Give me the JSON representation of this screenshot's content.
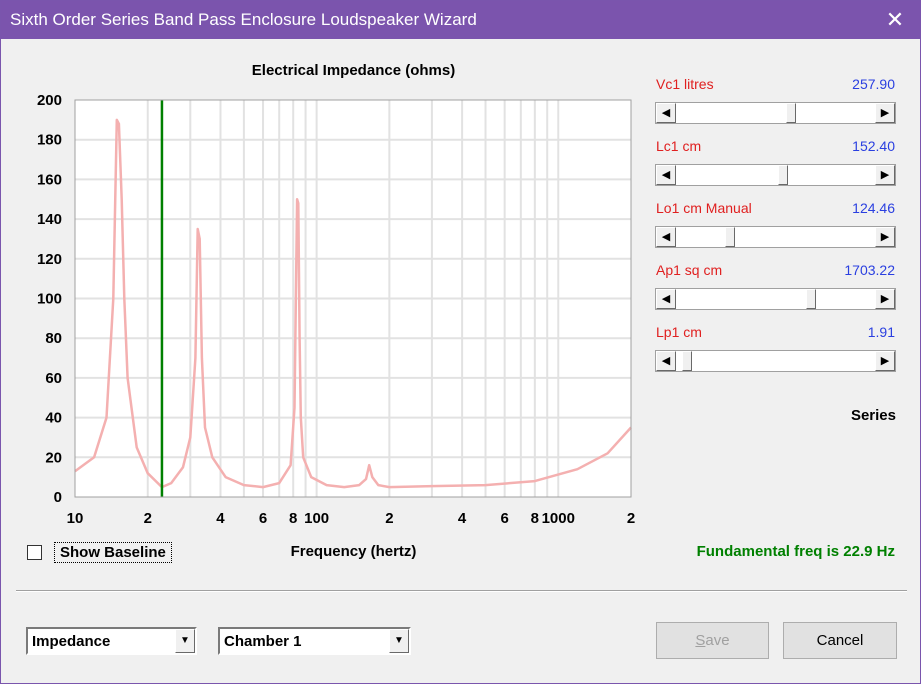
{
  "window": {
    "title": "Sixth Order Series Band Pass Enclosure Loudspeaker Wizard",
    "close_glyph": "✕"
  },
  "chart_data": {
    "type": "line",
    "title": "Electrical Impedance (ohms)",
    "xlabel": "Frequency (hertz)",
    "ylabel": "",
    "x_scale": "log",
    "xlim": [
      10,
      2000
    ],
    "ylim": [
      0,
      200
    ],
    "y_ticks": [
      0,
      20,
      40,
      60,
      80,
      100,
      120,
      140,
      160,
      180,
      200
    ],
    "x_ticks": [
      {
        "value": 10,
        "label": "10"
      },
      {
        "value": 20,
        "label": "2"
      },
      {
        "value": 40,
        "label": "4"
      },
      {
        "value": 60,
        "label": "6"
      },
      {
        "value": 80,
        "label": "8"
      },
      {
        "value": 100,
        "label": "100"
      },
      {
        "value": 200,
        "label": "2"
      },
      {
        "value": 400,
        "label": "4"
      },
      {
        "value": 600,
        "label": "6"
      },
      {
        "value": 800,
        "label": "8"
      },
      {
        "value": 1000,
        "label": "1000"
      },
      {
        "value": 2000,
        "label": "2"
      }
    ],
    "grid": true,
    "marker_frequency": 22.9,
    "series": [
      {
        "color": "#f4b0b0",
        "x": [
          10,
          12,
          13.5,
          14.4,
          14.9,
          15.2,
          15.6,
          16,
          16.5,
          18,
          20,
          22.9,
          25,
          28,
          30,
          31.5,
          32.2,
          32.8,
          33.5,
          34.5,
          37,
          42,
          50,
          60,
          70,
          78,
          81,
          83,
          84,
          85,
          86,
          88,
          95,
          110,
          130,
          150,
          160,
          165,
          170,
          180,
          200,
          300,
          500,
          800,
          1200,
          1600,
          2000
        ],
        "y": [
          13,
          20,
          40,
          100,
          190,
          188,
          150,
          100,
          60,
          25,
          12,
          5,
          7,
          15,
          30,
          70,
          135,
          130,
          70,
          35,
          20,
          10,
          6,
          5,
          7,
          16,
          45,
          150,
          148,
          80,
          40,
          20,
          10,
          6,
          5,
          6,
          9,
          16,
          10,
          6,
          5,
          5.5,
          6,
          8,
          14,
          22,
          35
        ]
      }
    ]
  },
  "params": [
    {
      "label": "Vc1  litres",
      "value": "257.90",
      "fraction": 0.58
    },
    {
      "label": "Lc1  cm",
      "value": "152.40",
      "fraction": 0.54
    },
    {
      "label": "Lo1  cm  Manual",
      "value": "124.46",
      "fraction": 0.26
    },
    {
      "label": "Ap1  sq cm",
      "value": "1703.22",
      "fraction": 0.69
    },
    {
      "label": "Lp1  cm",
      "value": "1.91",
      "fraction": 0.03
    }
  ],
  "series_label": "Series",
  "fundamental": "Fundamental freq is 22.9 Hz",
  "show_baseline": {
    "label": "Show Baseline",
    "checked": false
  },
  "combos": {
    "view": "Impedance",
    "chamber": "Chamber 1"
  },
  "buttons": {
    "save": "Save",
    "cancel": "Cancel"
  },
  "colors": {
    "titlebar": "#7b54ad",
    "curve": "#f4b0b0",
    "marker": "#008000",
    "param_label": "#e02020",
    "param_value": "#2a3fe0"
  }
}
